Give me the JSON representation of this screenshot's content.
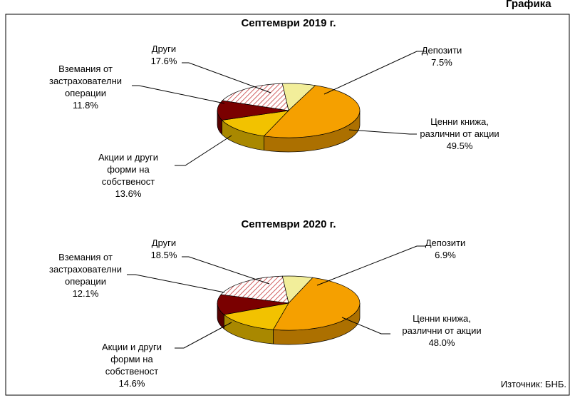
{
  "header": "Графика",
  "source": "Източник: БНБ.",
  "chart_data": [
    {
      "type": "pie",
      "title": "Септември 2019 г.",
      "categories": [
        "Депозити",
        "Ценни книжа,\nразлични от акции",
        "Акции и други\nформи на\nсобственост",
        "Вземания от\nзастрахователни\nоперации",
        "Други"
      ],
      "values": [
        7.5,
        49.5,
        13.6,
        11.8,
        17.6
      ],
      "value_labels": [
        "7.5%",
        "49.5%",
        "13.6%",
        "11.8%",
        "17.6%"
      ],
      "colors": [
        "#f2ee9a",
        "#f5a000",
        "#f2c200",
        "#7a0000",
        "#d06060"
      ]
    },
    {
      "type": "pie",
      "title": "Септември 2020 г.",
      "categories": [
        "Депозити",
        "Ценни книжа,\nразлични от акции",
        "Акции и други\nформи на\nсобственост",
        "Вземания от\nзастрахователни\nоперации",
        "Други"
      ],
      "values": [
        6.9,
        48.0,
        14.6,
        12.1,
        18.5
      ],
      "value_labels": [
        "6.9%",
        "48.0%",
        "14.6%",
        "12.1%",
        "18.5%"
      ],
      "colors": [
        "#f2ee9a",
        "#f5a000",
        "#f2c200",
        "#7a0000",
        "#d06060"
      ]
    }
  ]
}
